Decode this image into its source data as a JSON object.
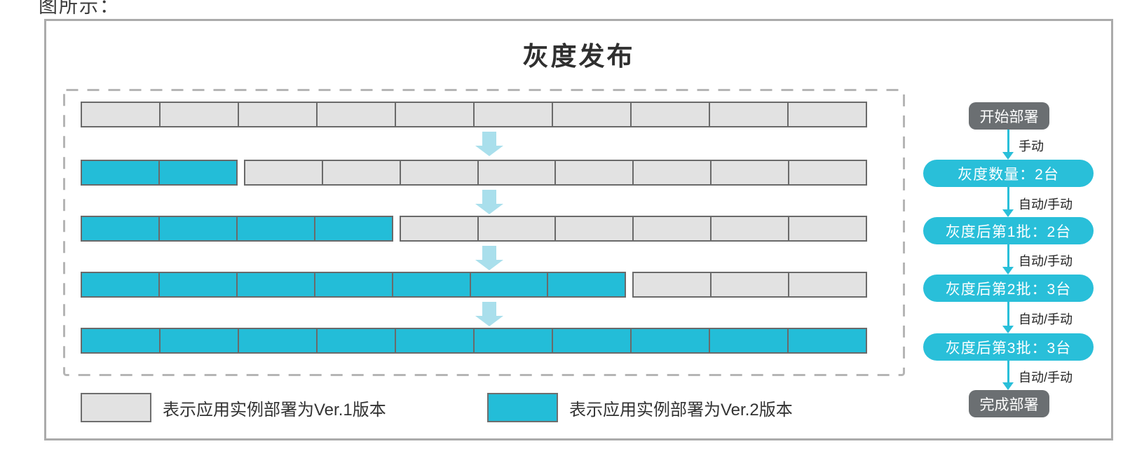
{
  "page": {
    "context_text": "图所示：",
    "title": "灰度发布"
  },
  "deployment_rows": [
    {
      "stage": 1,
      "ver2_count": 0,
      "ver1_count": 10
    },
    {
      "stage": 2,
      "ver2_count": 2,
      "ver1_count": 8
    },
    {
      "stage": 3,
      "ver2_count": 4,
      "ver1_count": 6
    },
    {
      "stage": 4,
      "ver2_count": 7,
      "ver1_count": 3
    },
    {
      "stage": 5,
      "ver2_count": 10,
      "ver1_count": 0
    }
  ],
  "flow": {
    "nodes": [
      {
        "type": "dark",
        "label": "开始部署"
      },
      {
        "type": "cyan",
        "label": "灰度数量：2台"
      },
      {
        "type": "cyan",
        "label": "灰度后第1批：2台"
      },
      {
        "type": "cyan",
        "label": "灰度后第2批：3台"
      },
      {
        "type": "cyan",
        "label": "灰度后第3批：3台"
      },
      {
        "type": "dark",
        "label": "完成部署"
      }
    ],
    "arrow_labels": [
      "手动",
      "自动/手动",
      "自动/手动",
      "自动/手动",
      "自动/手动"
    ]
  },
  "legend": [
    {
      "version": "Ver.1",
      "label": "表示应用实例部署为Ver.1版本"
    },
    {
      "version": "Ver.2",
      "label": "表示应用实例部署为Ver.2版本"
    }
  ],
  "colors": {
    "ver1_fill": "#e2e2e2",
    "ver2_fill": "#23bdd8",
    "cell_border": "#6a6a6a",
    "accent_cyan": "#29bfd9",
    "block_arrow": "#a9dfec",
    "dark_node": "#6b6f72",
    "dashed_border": "#b5b5b5",
    "outer_border": "#ababab"
  }
}
